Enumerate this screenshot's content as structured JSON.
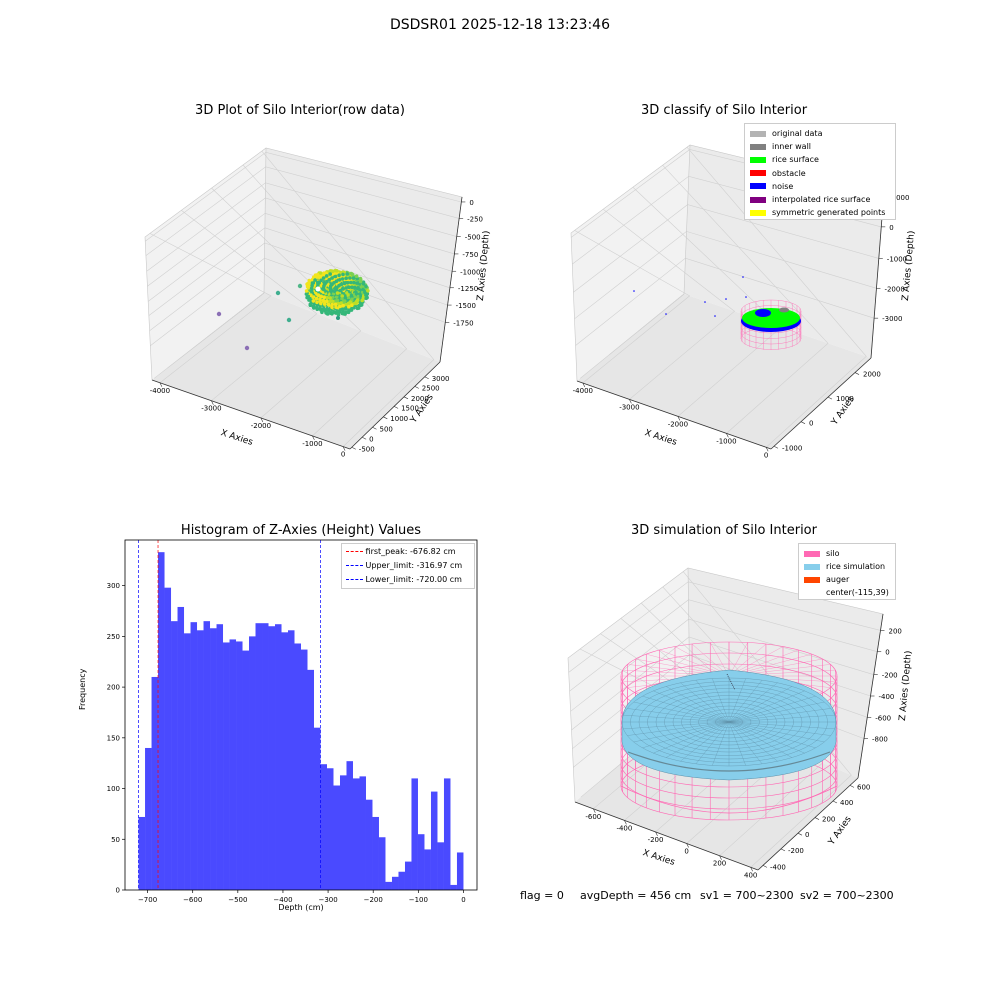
{
  "figure_title": "DSDSR01 2025-12-18 13:23:46",
  "footer": {
    "flag": "flag = 0",
    "avg_depth": "avgDepth = 456 cm",
    "sv1": "sv1 = 700~2300",
    "sv2": "sv2 = 700~2300"
  },
  "chart_data": [
    {
      "type": "scatter",
      "projection": "3d",
      "title": "3D Plot of Silo Interior(row data)",
      "xlabel": "X Axies",
      "ylabel": "Y Axies",
      "zlabel": "Z Axies (Depth)",
      "xticks": [
        "-4000",
        "-3000",
        "-2000",
        "-1000",
        "0"
      ],
      "yticks": [
        "-500",
        "0",
        "500",
        "1000",
        "1500",
        "2000",
        "2500",
        "3000"
      ],
      "zticks": [
        "0",
        "-250",
        "-500",
        "-750",
        "-1000",
        "-1250",
        "-1500",
        "-1750"
      ],
      "colormap": "viridis",
      "outlier_points": [
        {
          "x": -4000,
          "y": 3000,
          "z": -1500
        },
        {
          "x": -3000,
          "y": 3000,
          "z": -1750
        },
        {
          "x": -2400,
          "y": 2800,
          "z": -1100
        },
        {
          "x": -1900,
          "y": 2500,
          "z": -1000
        },
        {
          "x": -1600,
          "y": 2000,
          "z": -1300
        },
        {
          "x": -1300,
          "y": 2600,
          "z": -900
        }
      ]
    },
    {
      "type": "scatter",
      "projection": "3d",
      "title": "3D classify of Silo Interior",
      "xlabel": "X Axies",
      "ylabel": "Y Axies",
      "zlabel": "Z Axies (Depth)",
      "xticks": [
        "-4000",
        "-3000",
        "-2000",
        "-1000",
        "0"
      ],
      "yticks": [
        "-1000",
        "0",
        "1000",
        "2000",
        "3000"
      ],
      "zticks": [
        "1000",
        "0",
        "-1000",
        "-2000",
        "-3000"
      ],
      "legend_position": "top-right",
      "legend": [
        {
          "label": "original data",
          "color": "#b3b3b3"
        },
        {
          "label": "inner wall",
          "color": "#808080"
        },
        {
          "label": "rice surface",
          "color": "#00ff00"
        },
        {
          "label": "obstacle",
          "color": "#ff0000"
        },
        {
          "label": "noise",
          "color": "#0000ff"
        },
        {
          "label": "interpolated rice surface",
          "color": "#800080"
        },
        {
          "label": "symmetric generated points",
          "color": "#ffff00"
        }
      ]
    },
    {
      "type": "bar",
      "title": "Histogram of Z-Axies (Height) Values",
      "xlabel": "Depth (cm)",
      "ylabel": "Frequency",
      "bar_color": "#4a4aff",
      "xlim": [
        -750,
        30
      ],
      "ylim": [
        0,
        345
      ],
      "xticks": [
        -700,
        -600,
        -500,
        -400,
        -300,
        -200,
        -100,
        0
      ],
      "yticks": [
        0,
        50,
        100,
        150,
        200,
        250,
        300
      ],
      "bin_start": -720,
      "bin_width": 14.4,
      "values": [
        72,
        140,
        210,
        333,
        298,
        265,
        279,
        253,
        264,
        256,
        265,
        258,
        262,
        244,
        247,
        245,
        236,
        250,
        263,
        263,
        260,
        262,
        254,
        256,
        243,
        237,
        217,
        160,
        124,
        120,
        103,
        113,
        127,
        110,
        112,
        89,
        72,
        52,
        8,
        13,
        18,
        28,
        110,
        55,
        40,
        97,
        47,
        110,
        5,
        37
      ],
      "lines": [
        {
          "x": -676.82,
          "color": "#ff0000",
          "label": "first_peak: -676.82 cm"
        },
        {
          "x": -316.97,
          "color": "#0000ff",
          "label": "Upper_limit: -316.97 cm"
        },
        {
          "x": -720.0,
          "color": "#0000ff",
          "label": "Lower_limit: -720.00 cm"
        }
      ],
      "legend_position": "top-right"
    },
    {
      "type": "surface",
      "projection": "3d",
      "title": "3D simulation of Silo Interior",
      "xlabel": "X Axies",
      "ylabel": "Y Axies",
      "zlabel": "Z Axies (Depth)",
      "xticks": [
        "-600",
        "-400",
        "-200",
        "0",
        "200",
        "400"
      ],
      "yticks": [
        "-400",
        "-200",
        "0",
        "200",
        "400",
        "600"
      ],
      "zticks": [
        "200",
        "0",
        "-200",
        "-400",
        "-600",
        "-800"
      ],
      "legend_position": "top-right",
      "legend": [
        {
          "label": "silo",
          "color": "#ff69b4"
        },
        {
          "label": "rice simulation",
          "color": "#87ceeb"
        },
        {
          "label": "auger",
          "color": "#ff4500"
        },
        {
          "label": "center(-115,39)",
          "color": ""
        }
      ]
    }
  ]
}
